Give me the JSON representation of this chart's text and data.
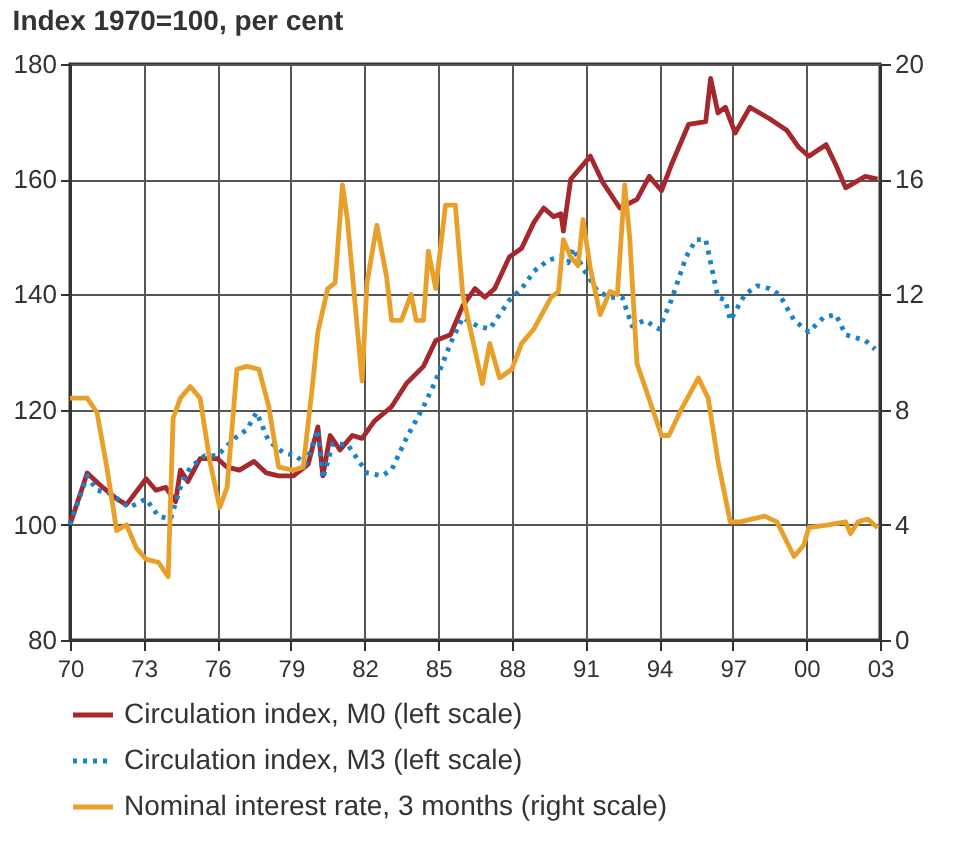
{
  "chart_data": {
    "type": "line",
    "title": "Index 1970=100, per cent",
    "xlim": [
      1970,
      2003
    ],
    "xticks": [
      {
        "value": 1970,
        "label": "70"
      },
      {
        "value": 1973,
        "label": "73"
      },
      {
        "value": 1976,
        "label": "76"
      },
      {
        "value": 1979,
        "label": "79"
      },
      {
        "value": 1982,
        "label": "82"
      },
      {
        "value": 1985,
        "label": "85"
      },
      {
        "value": 1988,
        "label": "88"
      },
      {
        "value": 1991,
        "label": "91"
      },
      {
        "value": 1994,
        "label": "94"
      },
      {
        "value": 1997,
        "label": "97"
      },
      {
        "value": 2000,
        "label": "00"
      },
      {
        "value": 2003,
        "label": "03"
      }
    ],
    "ylim": [
      80,
      180
    ],
    "yticks": [
      80,
      100,
      120,
      140,
      160,
      180
    ],
    "y2lim": [
      0,
      20
    ],
    "y2ticks": [
      0,
      4,
      8,
      12,
      16,
      20
    ],
    "grid": true,
    "legend": "bottom",
    "marker": "none",
    "series": [
      {
        "name": "Circulation index, M0 (left scale)",
        "color": "#a4282d",
        "line_style": "solid",
        "axis": "y",
        "x": [
          1970,
          1970.7,
          1971.2,
          1971.9,
          1972.3,
          1973.1,
          1973.5,
          1973.9,
          1974.3,
          1974.5,
          1974.8,
          1975.3,
          1976,
          1976.4,
          1976.9,
          1977.5,
          1978,
          1978.5,
          1979.1,
          1979.7,
          1980.1,
          1980.3,
          1980.6,
          1981,
          1981.5,
          1981.9,
          1982.4,
          1983.1,
          1983.7,
          1984.4,
          1984.9,
          1985.5,
          1986,
          1986.5,
          1986.9,
          1987.3,
          1987.9,
          1988.4,
          1988.9,
          1989.3,
          1989.7,
          1990,
          1990.1,
          1990.4,
          1991.2,
          1991.7,
          1992.4,
          1993.1,
          1993.6,
          1994.1,
          1994.5,
          1995.2,
          1995.9,
          1996.1,
          1996.4,
          1996.7,
          1997.1,
          1997.7,
          1998.5,
          1999.2,
          1999.7,
          2000.1,
          2000.8,
          2001.2,
          2001.6,
          2002,
          2002.4,
          2002.9
        ],
        "values": [
          100,
          109,
          107,
          104.5,
          103.5,
          108,
          106,
          106.5,
          104,
          109.5,
          107.5,
          111.5,
          111.5,
          110,
          109.5,
          111,
          109,
          108.5,
          108.5,
          110.5,
          117,
          108.5,
          115.5,
          113,
          115.5,
          115,
          118,
          120.5,
          124.5,
          127.5,
          132,
          133,
          138,
          141,
          139.5,
          141,
          146.5,
          148,
          152.5,
          155,
          153.5,
          154,
          151,
          160,
          164,
          159.5,
          155,
          156.5,
          160.5,
          158,
          162.5,
          169.5,
          170,
          177.5,
          171.5,
          172.5,
          168,
          172.5,
          170.5,
          168.5,
          165.5,
          164,
          166,
          162.5,
          158.5,
          159.5,
          160.5,
          160
        ]
      },
      {
        "name": "Circulation index, M3 (left scale)",
        "color": "#1a82c8",
        "line_style": "dotted",
        "axis": "y",
        "x": [
          1970,
          1970.7,
          1971.1,
          1971.6,
          1972.1,
          1972.4,
          1973.1,
          1973.6,
          1974.1,
          1974.5,
          1974.9,
          1975.5,
          1976,
          1976.7,
          1977.2,
          1977.6,
          1978.1,
          1978.7,
          1979.2,
          1979.6,
          1980.1,
          1980.3,
          1980.7,
          1981.3,
          1981.7,
          1982.1,
          1982.7,
          1983.1,
          1983.7,
          1984.4,
          1984.9,
          1985.5,
          1986,
          1986.6,
          1987.1,
          1987.5,
          1987.9,
          1988.4,
          1988.9,
          1989.5,
          1990,
          1990.3,
          1990.5,
          1990.9,
          1991.5,
          1992,
          1992.5,
          1992.9,
          1993.4,
          1994,
          1994.5,
          1995.1,
          1995.5,
          1995.9,
          1996.1,
          1996.4,
          1996.7,
          1996.9,
          1997.5,
          1998,
          1998.5,
          1998.9,
          1999.5,
          2000.1,
          2000.7,
          2001.2,
          2001.6,
          2002,
          2002.4,
          2002.8
        ],
        "values": [
          100,
          108.5,
          106,
          105.5,
          104,
          103,
          104.5,
          101.5,
          101,
          106.5,
          110,
          112,
          112,
          115,
          116.5,
          119.5,
          114.5,
          112.5,
          112,
          110.5,
          116.5,
          108,
          114,
          114,
          111.5,
          109,
          108.5,
          109.5,
          115,
          120.5,
          125,
          131.5,
          136,
          134.5,
          134,
          136.5,
          139,
          141,
          144,
          146,
          146.5,
          145.5,
          148,
          144.5,
          140.5,
          139.5,
          139.5,
          134.5,
          135.5,
          134,
          139,
          146.5,
          149.5,
          149.5,
          145.5,
          139.5,
          139,
          135.5,
          140,
          141.5,
          141,
          140,
          135.5,
          133.5,
          136,
          136.5,
          133,
          132.5,
          132,
          130.5
        ]
      },
      {
        "name": "Nominal interest rate, 3 months (right scale)",
        "color": "#e8a02a",
        "line_style": "solid",
        "axis": "y2",
        "x": [
          1970,
          1970.7,
          1971.1,
          1971.5,
          1971.9,
          1972.3,
          1972.7,
          1973.1,
          1973.6,
          1974,
          1974.2,
          1974.5,
          1974.9,
          1975.3,
          1975.7,
          1976.1,
          1976.4,
          1976.8,
          1977.2,
          1977.7,
          1978.1,
          1978.5,
          1979.1,
          1979.5,
          1979.9,
          1980.1,
          1980.5,
          1980.8,
          1981.1,
          1981.3,
          1981.9,
          1982.1,
          1982.5,
          1982.9,
          1983.1,
          1983.5,
          1983.9,
          1984.1,
          1984.4,
          1984.6,
          1984.9,
          1985.3,
          1985.7,
          1986,
          1986.8,
          1987.1,
          1987.5,
          1988,
          1988.4,
          1988.9,
          1989.6,
          1989.9,
          1990.1,
          1990.4,
          1990.7,
          1990.9,
          1991.2,
          1991.6,
          1992,
          1992.3,
          1992.6,
          1992.8,
          1993.1,
          1993.5,
          1994.1,
          1994.4,
          1994.9,
          1995.6,
          1996,
          1996.4,
          1996.9,
          1997.3,
          1998.3,
          1998.8,
          1999.5,
          1999.9,
          2000.1,
          2000.9,
          2001.6,
          2001.8,
          2002.1,
          2002.5,
          2002.9
        ],
        "values": [
          8.4,
          8.4,
          7.9,
          6,
          3.8,
          4,
          3.2,
          2.8,
          2.7,
          2.2,
          7.7,
          8.4,
          8.8,
          8.4,
          6.2,
          4.6,
          5.3,
          9.4,
          9.5,
          9.4,
          8.1,
          6,
          5.9,
          6,
          9,
          10.7,
          12.2,
          12.4,
          15.8,
          14.6,
          9,
          12.4,
          14.4,
          12.6,
          11.1,
          11.1,
          12,
          11.1,
          11.1,
          13.5,
          12.2,
          15.1,
          15.1,
          12,
          8.9,
          10.3,
          9.1,
          9.4,
          10.3,
          10.8,
          11.9,
          12.1,
          13.9,
          13.3,
          13,
          14.6,
          12.9,
          11.3,
          12.1,
          12,
          15.8,
          14,
          9.6,
          8.6,
          7.1,
          7.1,
          8,
          9.1,
          8.4,
          6.2,
          4.1,
          4.1,
          4.3,
          4.1,
          2.9,
          3.3,
          3.9,
          4,
          4.1,
          3.7,
          4.1,
          4.2,
          3.9
        ]
      }
    ]
  }
}
